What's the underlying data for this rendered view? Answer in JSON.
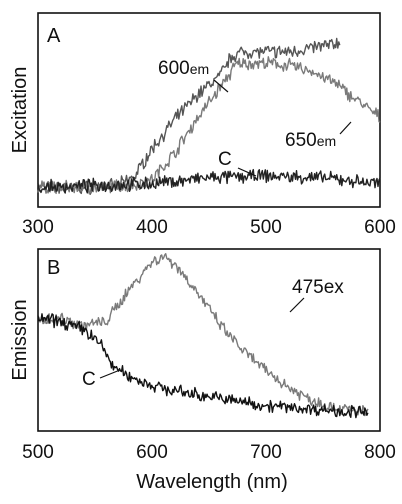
{
  "chart_data": [
    {
      "panel": "A",
      "type": "line",
      "ylabel": "Excitation",
      "xlim": [
        300,
        600
      ],
      "xticks": [
        "300",
        "400",
        "500",
        "600"
      ],
      "ylim": [
        0,
        1
      ],
      "series": [
        {
          "name": "600em",
          "label_main": "600",
          "label_sub": "em",
          "color": "#555555",
          "x": [
            300,
            340,
            370,
            385,
            400,
            420,
            440,
            460,
            470,
            480,
            500,
            520,
            540,
            560,
            565
          ],
          "y": [
            0.1,
            0.1,
            0.11,
            0.16,
            0.3,
            0.45,
            0.58,
            0.68,
            0.78,
            0.8,
            0.8,
            0.8,
            0.82,
            0.84,
            0.85
          ]
        },
        {
          "name": "650em",
          "label_main": "650",
          "label_sub": "em",
          "color": "#7a7a7a",
          "x": [
            300,
            350,
            380,
            400,
            420,
            440,
            460,
            475,
            500,
            520,
            540,
            560,
            580,
            600
          ],
          "y": [
            0.1,
            0.1,
            0.11,
            0.14,
            0.28,
            0.46,
            0.62,
            0.74,
            0.74,
            0.73,
            0.7,
            0.64,
            0.55,
            0.46
          ]
        },
        {
          "name": "C",
          "label_main": "C",
          "color": "#222222",
          "x": [
            300,
            350,
            400,
            450,
            500,
            550,
            600
          ],
          "y": [
            0.1,
            0.11,
            0.12,
            0.15,
            0.16,
            0.15,
            0.12
          ]
        }
      ]
    },
    {
      "panel": "B",
      "type": "line",
      "ylabel": "Emission",
      "xlabel": "Wavelength (nm)",
      "xlim": [
        500,
        800
      ],
      "xticks": [
        "500",
        "600",
        "700",
        "800"
      ],
      "ylim": [
        0,
        1
      ],
      "series": [
        {
          "name": "475ex",
          "label_main": "475ex",
          "color": "#7a7a7a",
          "x": [
            500,
            520,
            540,
            560,
            580,
            600,
            610,
            620,
            640,
            660,
            680,
            700,
            720,
            740,
            760,
            790
          ],
          "y": [
            0.62,
            0.62,
            0.58,
            0.6,
            0.78,
            0.93,
            0.96,
            0.92,
            0.76,
            0.58,
            0.44,
            0.33,
            0.24,
            0.17,
            0.13,
            0.1
          ]
        },
        {
          "name": "C",
          "label_main": "C",
          "color": "#111111",
          "x": [
            500,
            520,
            540,
            555,
            565,
            580,
            600,
            620,
            650,
            680,
            700,
            740,
            790
          ],
          "y": [
            0.62,
            0.6,
            0.56,
            0.48,
            0.36,
            0.3,
            0.25,
            0.22,
            0.19,
            0.16,
            0.14,
            0.12,
            0.1
          ]
        }
      ]
    }
  ]
}
